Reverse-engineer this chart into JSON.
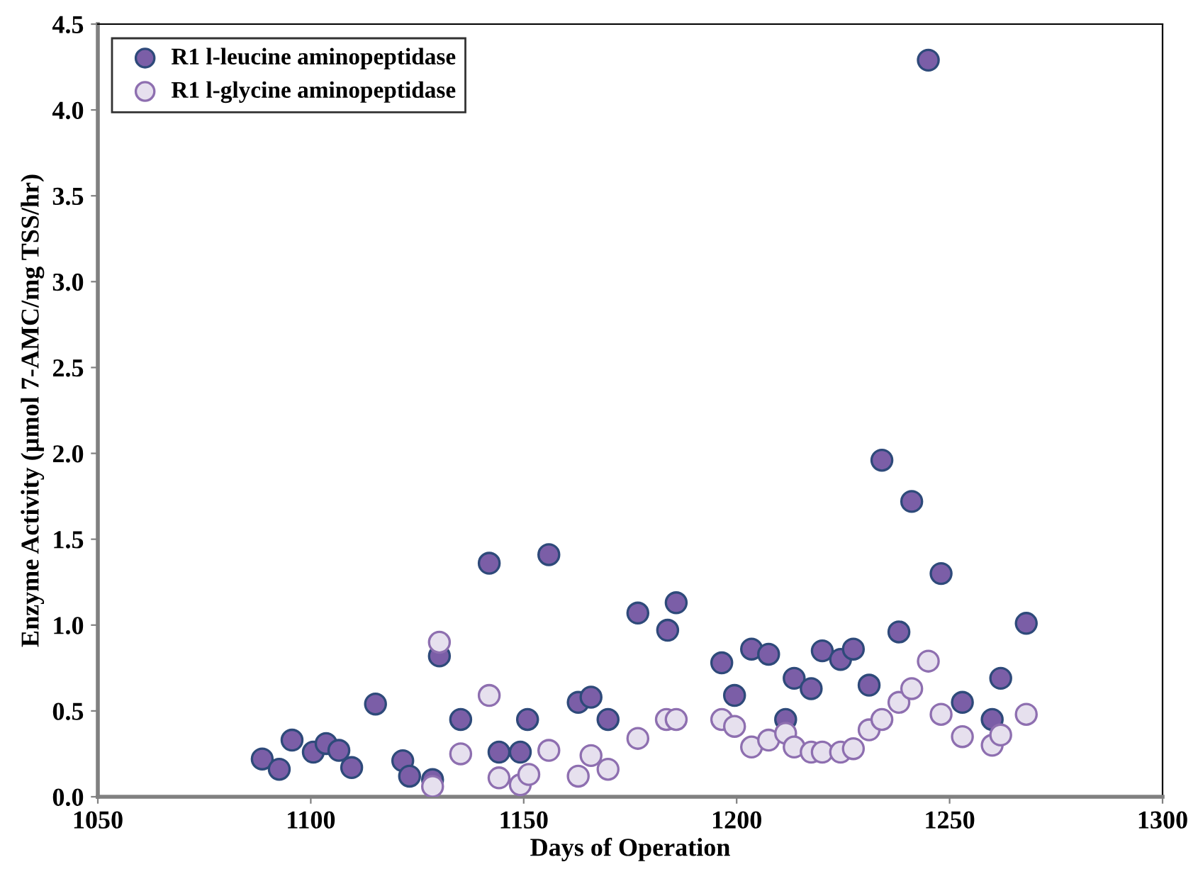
{
  "chart_data": {
    "type": "scatter",
    "xlabel": "Days of Operation",
    "ylabel": "Enzyme Activity (µmol 7-AMC/mg TSS/hr)",
    "xlim": [
      1050,
      1300
    ],
    "xticks": [
      1050,
      1100,
      1150,
      1200,
      1250,
      1300
    ],
    "ylim": [
      0,
      4.5
    ],
    "yticks": [
      {
        "value": 0,
        "label": "0.0"
      },
      {
        "value": 0.5,
        "label": "0.5"
      },
      {
        "value": 1,
        "label": "1.0"
      },
      {
        "value": 1.5,
        "label": "1.5"
      },
      {
        "value": 2,
        "label": "2.0"
      },
      {
        "value": 2.5,
        "label": "2.5"
      },
      {
        "value": 3,
        "label": "3.0"
      },
      {
        "value": 3.5,
        "label": "3.5"
      },
      {
        "value": 4,
        "label": "4.0"
      },
      {
        "value": 4.5,
        "label": "4.5"
      }
    ],
    "grid": false,
    "legend": "top left",
    "marker": "circle",
    "series": [
      {
        "name": "R1 l-leucine aminopeptidase",
        "color": "#7b5ea7",
        "x": [
          1088.6,
          1092.6,
          1095.6,
          1100.6,
          1103.6,
          1106.6,
          1109.6,
          1115.2,
          1121.6,
          1123.2,
          1128.6,
          1130.2,
          1135.2,
          1141.9,
          1144.2,
          1149.2,
          1150.9,
          1155.9,
          1162.8,
          1165.8,
          1169.8,
          1176.8,
          1183.8,
          1185.8,
          1196.5,
          1199.5,
          1203.5,
          1207.5,
          1211.5,
          1213.5,
          1217.5,
          1220.1,
          1224.4,
          1227.4,
          1231.1,
          1234.1,
          1238.1,
          1241.1,
          1245,
          1248,
          1253,
          1260,
          1262,
          1268
        ],
        "values": [
          0.22,
          0.16,
          0.33,
          0.26,
          0.31,
          0.27,
          0.17,
          0.54,
          0.21,
          0.12,
          0.1,
          0.82,
          0.45,
          1.36,
          0.26,
          0.26,
          0.45,
          1.41,
          0.55,
          0.58,
          0.45,
          1.07,
          0.97,
          1.13,
          0.78,
          0.59,
          0.86,
          0.83,
          0.45,
          0.69,
          0.63,
          0.85,
          0.8,
          0.86,
          0.65,
          1.96,
          0.96,
          1.72,
          4.29,
          1.3,
          0.55,
          0.45,
          0.69,
          1.01
        ]
      },
      {
        "name": "R1 l-glycine aminopeptidase",
        "color": "#e6e0ee",
        "x": [
          1128.6,
          1130.2,
          1135.2,
          1141.9,
          1144.2,
          1149.2,
          1151.2,
          1155.9,
          1162.8,
          1165.8,
          1169.8,
          1176.8,
          1183.5,
          1185.8,
          1196.5,
          1199.5,
          1203.5,
          1207.5,
          1211.5,
          1213.5,
          1217.5,
          1220.1,
          1224.4,
          1227.4,
          1231.1,
          1234.1,
          1238.1,
          1241.1,
          1245,
          1248,
          1253,
          1260,
          1262,
          1268
        ],
        "values": [
          0.06,
          0.9,
          0.25,
          0.59,
          0.11,
          0.07,
          0.13,
          0.27,
          0.12,
          0.24,
          0.16,
          0.34,
          0.45,
          0.45,
          0.45,
          0.41,
          0.29,
          0.33,
          0.37,
          0.29,
          0.26,
          0.26,
          0.26,
          0.28,
          0.39,
          0.45,
          0.55,
          0.63,
          0.79,
          0.48,
          0.35,
          0.3,
          0.36,
          0.48
        ]
      }
    ]
  }
}
